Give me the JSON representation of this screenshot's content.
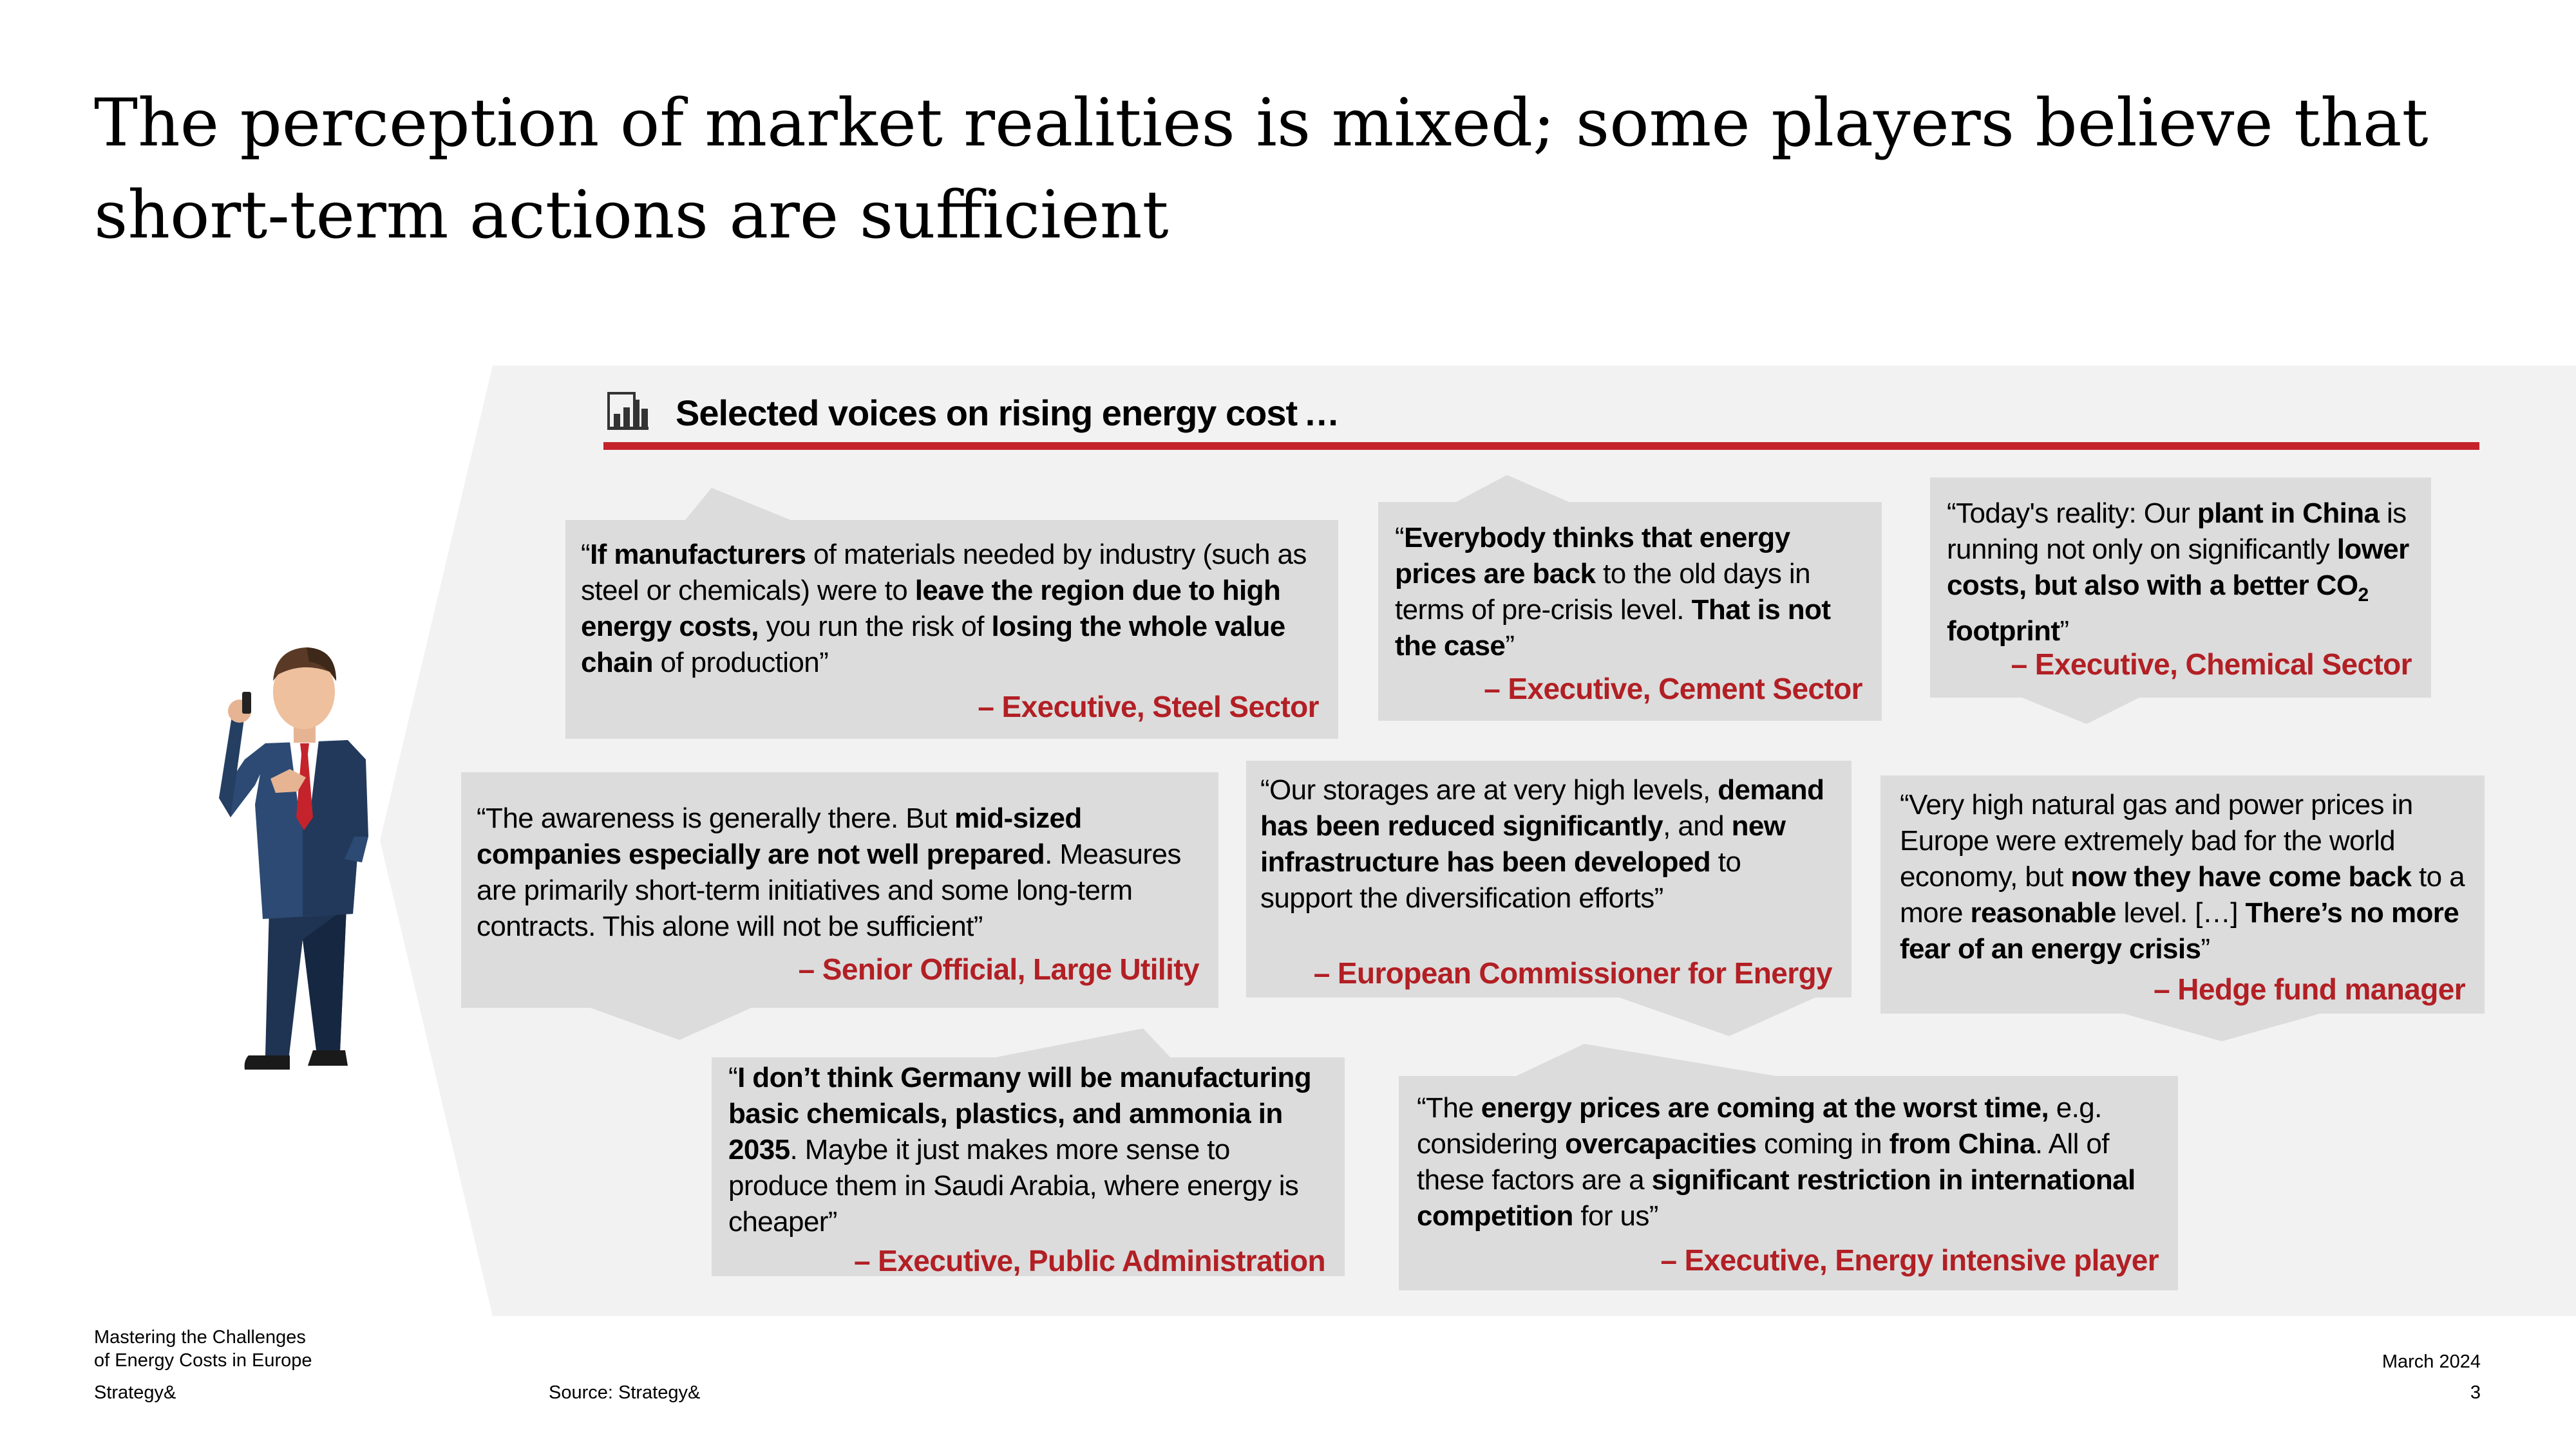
{
  "title": "The perception of market realities is mixed; some players believe that short-term actions are sufficient",
  "section": {
    "icon": "bar-chart-document-icon",
    "title": "Selected voices on rising energy cost …"
  },
  "colors": {
    "accent": "#c5232b",
    "attribution": "#b21f24",
    "bubble": "#dcdcdc",
    "panel": "#f2f2f2"
  },
  "quotes": [
    {
      "id": "steel",
      "segments": [
        {
          "t": "“"
        },
        {
          "t": "If manufacturers",
          "b": true
        },
        {
          "t": " of materials needed by industry (such as steel or chemicals) were to "
        },
        {
          "t": "leave the region due to high energy costs,",
          "b": true
        },
        {
          "t": " you run the risk of "
        },
        {
          "t": "losing the whole value chain",
          "b": true
        },
        {
          "t": " of production”"
        }
      ],
      "attribution": "– Executive, Steel Sector"
    },
    {
      "id": "cement",
      "segments": [
        {
          "t": "“"
        },
        {
          "t": "Everybody thinks that energy prices are back",
          "b": true
        },
        {
          "t": " to the old days in terms of pre-crisis level. "
        },
        {
          "t": "That is not the case",
          "b": true
        },
        {
          "t": "”"
        }
      ],
      "attribution": "– Executive, Cement Sector"
    },
    {
      "id": "chemical",
      "segments": [
        {
          "t": "“Today's reality: Our "
        },
        {
          "t": "plant in China",
          "b": true
        },
        {
          "t": " is running not only on significantly "
        },
        {
          "t": "lower costs, but also with a better CO",
          "b": true
        },
        {
          "t": "2",
          "b": true,
          "sub": true
        },
        {
          "t": " footprint",
          "b": true
        },
        {
          "t": "”"
        }
      ],
      "attribution": "– Executive, Chemical Sector"
    },
    {
      "id": "utility",
      "segments": [
        {
          "t": "“The awareness is generally there. But "
        },
        {
          "t": "mid-sized companies especially are not well prepared",
          "b": true
        },
        {
          "t": ". Measures are primarily short-term initiatives and some long-term contracts. This alone will not be sufficient”"
        }
      ],
      "attribution": "– Senior Official, Large Utility"
    },
    {
      "id": "commissioner",
      "segments": [
        {
          "t": "“Our storages are at very high levels, "
        },
        {
          "t": "demand has been reduced significantly",
          "b": true
        },
        {
          "t": ", and "
        },
        {
          "t": "new infrastructure has been developed",
          "b": true
        },
        {
          "t": " to support the diversification efforts”"
        }
      ],
      "attribution": "– European Commissioner for Energy"
    },
    {
      "id": "hedge",
      "segments": [
        {
          "t": "“Very high natural gas and power prices in Europe were extremely bad for the world economy, but "
        },
        {
          "t": "now they have come back",
          "b": true
        },
        {
          "t": " to a more "
        },
        {
          "t": "reasonable",
          "b": true
        },
        {
          "t": " level. […] "
        },
        {
          "t": "There’s no more fear of an energy crisis",
          "b": true
        },
        {
          "t": "”"
        }
      ],
      "attribution": "– Hedge fund manager"
    },
    {
      "id": "public",
      "segments": [
        {
          "t": "“"
        },
        {
          "t": "I don’t think Germany will be manufacturing basic chemicals, plastics, and ammonia in 2035",
          "b": true
        },
        {
          "t": ". Maybe it just makes more sense to produce them in Saudi Arabia, where energy is cheaper”"
        }
      ],
      "attribution": "– Executive, Public Administration"
    },
    {
      "id": "energy-intensive",
      "segments": [
        {
          "t": "“The "
        },
        {
          "t": "energy prices are coming at the worst time,",
          "b": true
        },
        {
          "t": " e.g. considering "
        },
        {
          "t": "overcapacities",
          "b": true
        },
        {
          "t": " coming in "
        },
        {
          "t": "from China",
          "b": true
        },
        {
          "t": ". All of these factors are a "
        },
        {
          "t": "significant restriction in international competition",
          "b": true
        },
        {
          "t": " for us”"
        }
      ],
      "attribution": "– Executive, Energy intensive player"
    }
  ],
  "figure": {
    "icon": "businessman-on-phone-icon"
  },
  "footer": {
    "publication_line1": "Mastering the Challenges",
    "publication_line2": "of Energy Costs in Europe",
    "brand": "Strategy&",
    "source": "Source: Strategy&",
    "date": "March 2024",
    "page": "3"
  }
}
